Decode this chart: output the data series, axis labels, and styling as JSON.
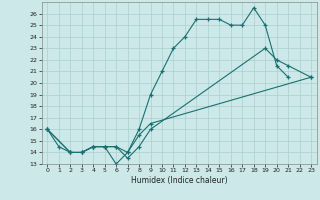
{
  "xlabel": "Humidex (Indice chaleur)",
  "background_color": "#cce8e8",
  "grid_color": "#aacfcf",
  "line_color": "#1a7070",
  "xlim": [
    -0.5,
    23.5
  ],
  "ylim": [
    13,
    27
  ],
  "xticks": [
    0,
    1,
    2,
    3,
    4,
    5,
    6,
    7,
    8,
    9,
    10,
    11,
    12,
    13,
    14,
    15,
    16,
    17,
    18,
    19,
    20,
    21,
    22,
    23
  ],
  "yticks": [
    13,
    14,
    15,
    16,
    17,
    18,
    19,
    20,
    21,
    22,
    23,
    24,
    25,
    26
  ],
  "line1": {
    "x": [
      0,
      1,
      2,
      3,
      4,
      5,
      6,
      7,
      8,
      9,
      10,
      11,
      12,
      13,
      14,
      15,
      16,
      17,
      18,
      19,
      20,
      21
    ],
    "y": [
      16,
      14.5,
      14,
      14,
      14.5,
      14.5,
      13,
      14,
      16,
      19,
      21,
      23,
      24,
      25.5,
      25.5,
      25.5,
      25,
      25,
      26.5,
      25,
      21.5,
      20.5
    ]
  },
  "line2": {
    "x": [
      0,
      2,
      3,
      4,
      5,
      6,
      7,
      8,
      9,
      23
    ],
    "y": [
      16,
      14,
      14,
      14.5,
      14.5,
      14.5,
      14,
      15.5,
      16.5,
      20.5
    ]
  },
  "line3": {
    "x": [
      0,
      2,
      3,
      4,
      5,
      6,
      7,
      8,
      9,
      19,
      20,
      21,
      23
    ],
    "y": [
      16,
      14,
      14,
      14.5,
      14.5,
      14.5,
      13.5,
      14.5,
      16,
      23,
      22,
      21.5,
      20.5
    ]
  }
}
